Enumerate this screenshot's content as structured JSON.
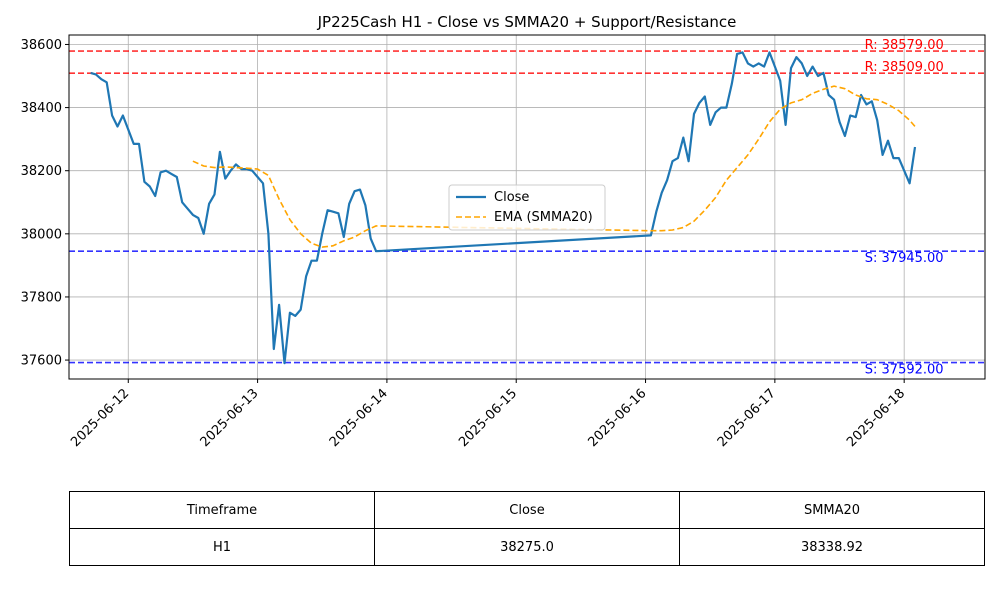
{
  "chart_data": {
    "type": "line",
    "title": "JP225Cash H1 - Close vs SMMA20 + Support/Resistance",
    "xlabel": "",
    "ylabel": "",
    "x_range": [
      "2025-06-11 13:00",
      "2025-06-18 15:00"
    ],
    "ylim": [
      37540,
      38630
    ],
    "grid": true,
    "legend_position": "center",
    "x_ticks": [
      "2025-06-12",
      "2025-06-13",
      "2025-06-14",
      "2025-06-15",
      "2025-06-16",
      "2025-06-17",
      "2025-06-18"
    ],
    "y_ticks": [
      37600,
      37800,
      38000,
      38200,
      38400,
      38600
    ],
    "series": [
      {
        "name": "Close",
        "color": "#1f77b4",
        "style": "solid",
        "x": [
          "2025-06-11 17:00",
          "2025-06-11 18:00",
          "2025-06-11 19:00",
          "2025-06-11 20:00",
          "2025-06-11 21:00",
          "2025-06-11 22:00",
          "2025-06-11 23:00",
          "2025-06-12 00:00",
          "2025-06-12 01:00",
          "2025-06-12 02:00",
          "2025-06-12 03:00",
          "2025-06-12 04:00",
          "2025-06-12 05:00",
          "2025-06-12 06:00",
          "2025-06-12 07:00",
          "2025-06-12 08:00",
          "2025-06-12 09:00",
          "2025-06-12 10:00",
          "2025-06-12 11:00",
          "2025-06-12 12:00",
          "2025-06-12 13:00",
          "2025-06-12 14:00",
          "2025-06-12 15:00",
          "2025-06-12 16:00",
          "2025-06-12 17:00",
          "2025-06-12 18:00",
          "2025-06-12 19:00",
          "2025-06-12 20:00",
          "2025-06-12 21:00",
          "2025-06-12 22:00",
          "2025-06-12 23:00",
          "2025-06-13 00:00",
          "2025-06-13 01:00",
          "2025-06-13 02:00",
          "2025-06-13 03:00",
          "2025-06-13 04:00",
          "2025-06-13 05:00",
          "2025-06-13 06:00",
          "2025-06-13 07:00",
          "2025-06-13 08:00",
          "2025-06-13 09:00",
          "2025-06-13 10:00",
          "2025-06-13 11:00",
          "2025-06-13 12:00",
          "2025-06-13 13:00",
          "2025-06-13 14:00",
          "2025-06-13 15:00",
          "2025-06-13 16:00",
          "2025-06-13 17:00",
          "2025-06-13 18:00",
          "2025-06-13 19:00",
          "2025-06-13 20:00",
          "2025-06-13 21:00",
          "2025-06-13 22:00",
          "2025-06-16 01:00",
          "2025-06-16 02:00",
          "2025-06-16 03:00",
          "2025-06-16 04:00",
          "2025-06-16 05:00",
          "2025-06-16 06:00",
          "2025-06-16 07:00",
          "2025-06-16 08:00",
          "2025-06-16 09:00",
          "2025-06-16 10:00",
          "2025-06-16 11:00",
          "2025-06-16 12:00",
          "2025-06-16 13:00",
          "2025-06-16 14:00",
          "2025-06-16 15:00",
          "2025-06-16 16:00",
          "2025-06-16 17:00",
          "2025-06-16 18:00",
          "2025-06-16 19:00",
          "2025-06-16 20:00",
          "2025-06-16 21:00",
          "2025-06-16 22:00",
          "2025-06-16 23:00",
          "2025-06-17 00:00",
          "2025-06-17 01:00",
          "2025-06-17 02:00",
          "2025-06-17 03:00",
          "2025-06-17 04:00",
          "2025-06-17 05:00",
          "2025-06-17 06:00",
          "2025-06-17 07:00",
          "2025-06-17 08:00",
          "2025-06-17 09:00",
          "2025-06-17 10:00",
          "2025-06-17 11:00",
          "2025-06-17 12:00",
          "2025-06-17 13:00",
          "2025-06-17 14:00",
          "2025-06-17 15:00",
          "2025-06-17 16:00",
          "2025-06-17 17:00",
          "2025-06-17 18:00",
          "2025-06-17 19:00",
          "2025-06-17 20:00",
          "2025-06-17 21:00",
          "2025-06-17 22:00",
          "2025-06-17 23:00",
          "2025-06-18 00:00",
          "2025-06-18 01:00",
          "2025-06-18 02:00"
        ],
        "values": [
          38510,
          38505,
          38490,
          38480,
          38375,
          38340,
          38375,
          38330,
          38285,
          38285,
          38165,
          38150,
          38120,
          38195,
          38200,
          38190,
          38180,
          38100,
          38080,
          38060,
          38050,
          38000,
          38095,
          38125,
          38260,
          38175,
          38200,
          38220,
          38205,
          38205,
          38200,
          38180,
          38160,
          38000,
          37635,
          37775,
          37590,
          37750,
          37740,
          37760,
          37865,
          37915,
          37915,
          38000,
          38075,
          38070,
          38065,
          37990,
          38095,
          38135,
          38140,
          38090,
          37985,
          37945,
          37995,
          38070,
          38130,
          38170,
          38230,
          38240,
          38305,
          38230,
          38380,
          38415,
          38435,
          38345,
          38385,
          38400,
          38400,
          38475,
          38570,
          38575,
          38540,
          38530,
          38540,
          38530,
          38575,
          38530,
          38485,
          38345,
          38525,
          38560,
          38540,
          38500,
          38530,
          38500,
          38510,
          38440,
          38425,
          38355,
          38310,
          38375,
          38370,
          38440,
          38410,
          38420,
          38360,
          38250,
          38295,
          38240,
          38240,
          38200,
          38160,
          38275
        ]
      },
      {
        "name": "EMA (SMMA20)",
        "color": "#ffa500",
        "style": "dashed",
        "x": [
          "2025-06-12 12:00",
          "2025-06-12 14:00",
          "2025-06-12 16:00",
          "2025-06-12 18:00",
          "2025-06-12 20:00",
          "2025-06-12 22:00",
          "2025-06-13 00:00",
          "2025-06-13 02:00",
          "2025-06-13 04:00",
          "2025-06-13 06:00",
          "2025-06-13 08:00",
          "2025-06-13 10:00",
          "2025-06-13 12:00",
          "2025-06-13 14:00",
          "2025-06-13 16:00",
          "2025-06-13 18:00",
          "2025-06-13 20:00",
          "2025-06-13 22:00",
          "2025-06-16 01:00",
          "2025-06-16 03:00",
          "2025-06-16 05:00",
          "2025-06-16 07:00",
          "2025-06-16 09:00",
          "2025-06-16 11:00",
          "2025-06-16 13:00",
          "2025-06-16 15:00",
          "2025-06-16 17:00",
          "2025-06-16 19:00",
          "2025-06-16 21:00",
          "2025-06-16 23:00",
          "2025-06-17 01:00",
          "2025-06-17 03:00",
          "2025-06-17 05:00",
          "2025-06-17 07:00",
          "2025-06-17 09:00",
          "2025-06-17 11:00",
          "2025-06-17 13:00",
          "2025-06-17 15:00",
          "2025-06-17 17:00",
          "2025-06-17 19:00",
          "2025-06-17 21:00",
          "2025-06-17 23:00",
          "2025-06-18 01:00",
          "2025-06-18 02:00"
        ],
        "values": [
          38230,
          38215,
          38210,
          38212,
          38210,
          38208,
          38205,
          38185,
          38110,
          38045,
          38000,
          37970,
          37958,
          37962,
          37978,
          37990,
          38010,
          38025,
          38010,
          38010,
          38012,
          38020,
          38040,
          38075,
          38115,
          38170,
          38210,
          38250,
          38300,
          38355,
          38395,
          38415,
          38425,
          38445,
          38458,
          38468,
          38460,
          38440,
          38428,
          38425,
          38410,
          38390,
          38360,
          38340
        ]
      }
    ],
    "horizontal_lines": [
      {
        "label": "R: 38579.00",
        "value": 38579.0,
        "color": "#ff0000"
      },
      {
        "label": "R: 38509.00",
        "value": 38509.0,
        "color": "#ff0000"
      },
      {
        "label": "S: 37945.00",
        "value": 37945.0,
        "color": "#0000ff"
      },
      {
        "label": "S: 37592.00",
        "value": 37592.0,
        "color": "#0000ff"
      }
    ]
  },
  "table": {
    "headers": [
      "Timeframe",
      "Close",
      "SMMA20"
    ],
    "row": [
      "H1",
      "38275.0",
      "38338.92"
    ]
  }
}
